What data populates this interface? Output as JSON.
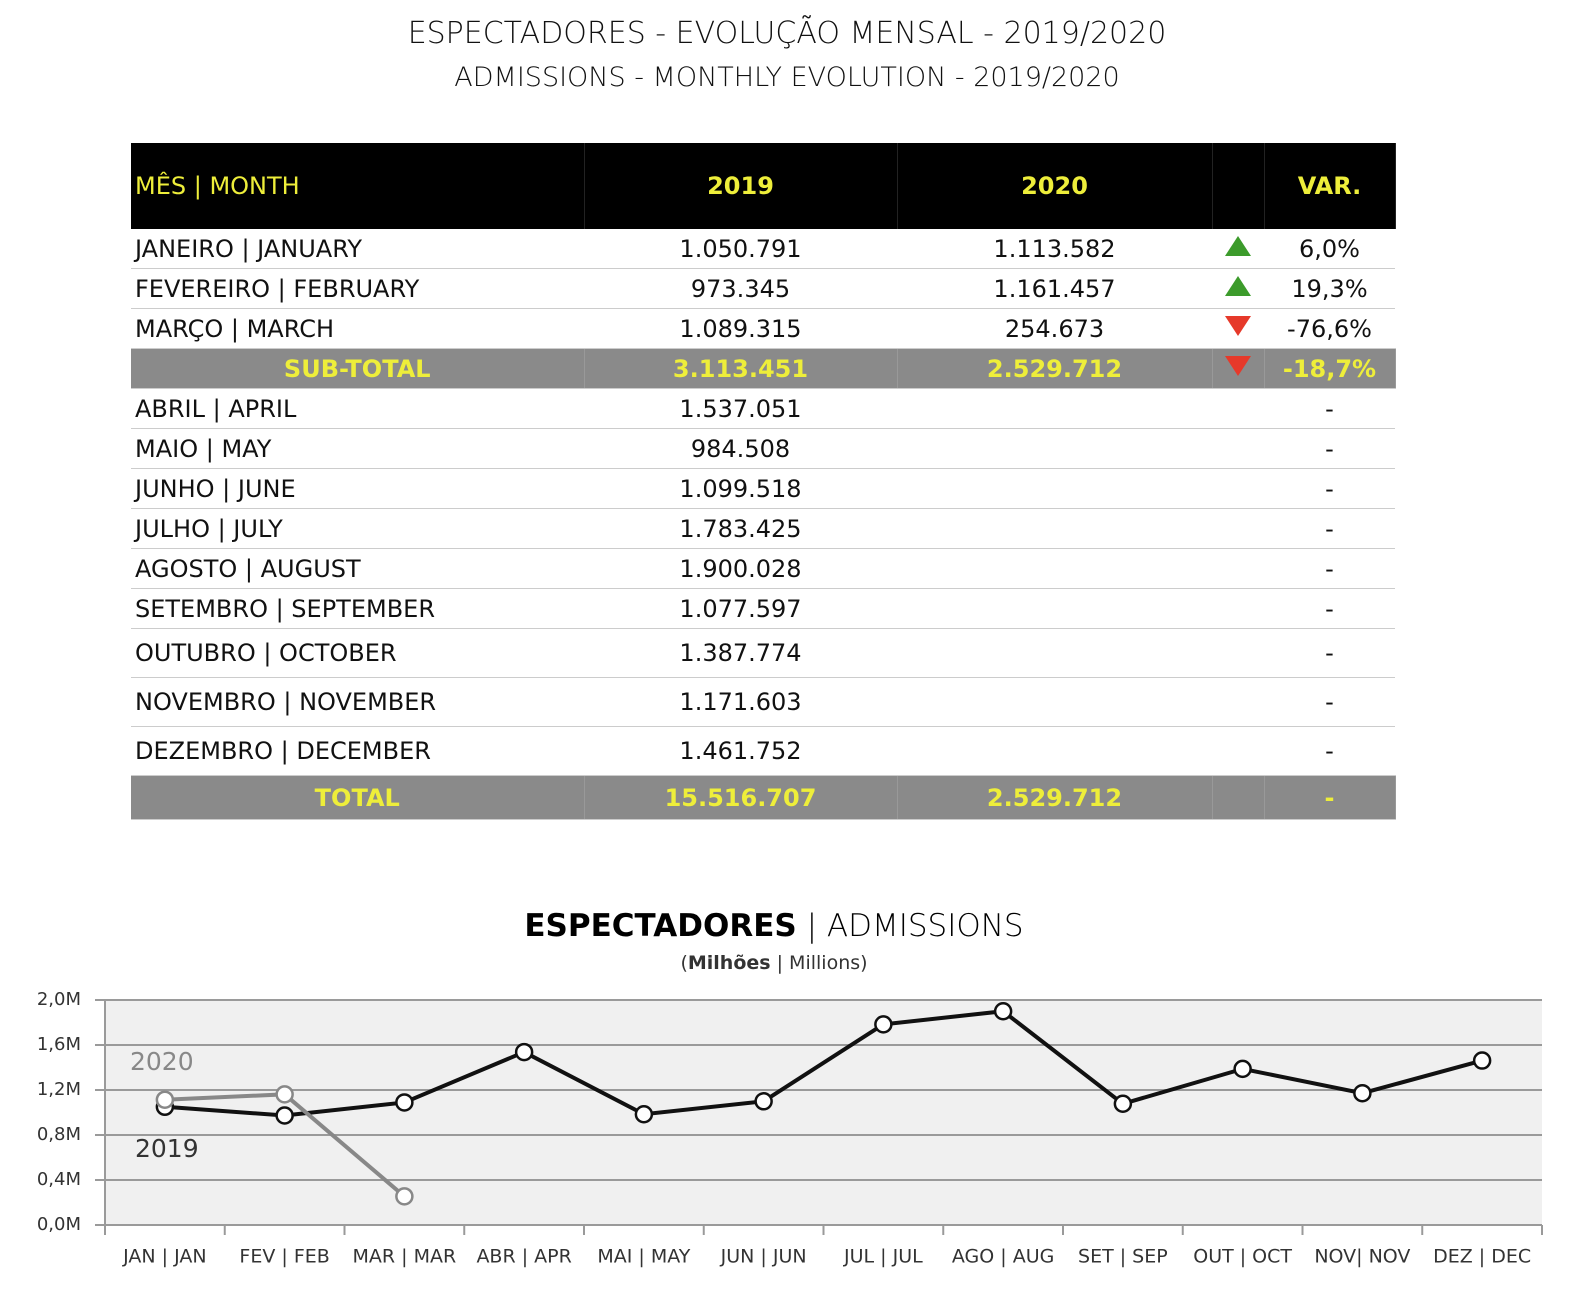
{
  "header": {
    "title": "ESPECTADORES - EVOLUÇÃO MENSAL - 2019/2020",
    "subtitle": "ADMISSIONS - MONTHLY EVOLUTION - 2019/2020"
  },
  "table": {
    "columns": [
      "MÊS | MONTH",
      "2019",
      "2020",
      "VAR."
    ],
    "arrow_colors": {
      "up": "#3c9b2b",
      "down": "#e6392a"
    },
    "rows": [
      {
        "cells": [
          "JANEIRO | JANUARY",
          "1.050.791",
          "1.113.582",
          "6,0%"
        ],
        "arrow": "up"
      },
      {
        "cells": [
          "FEVEREIRO | FEBRUARY",
          "973.345",
          "1.161.457",
          "19,3%"
        ],
        "arrow": "up"
      },
      {
        "cells": [
          "MARÇO | MARCH",
          "1.089.315",
          "254.673",
          "-76,6%"
        ],
        "arrow": "down"
      },
      {
        "cells": [
          "SUB-TOTAL",
          "3.113.451",
          "2.529.712",
          "-18,7%"
        ],
        "arrow": "down",
        "highlight": true
      },
      {
        "cells": [
          "ABRIL | APRIL",
          "1.537.051",
          null,
          "-"
        ]
      },
      {
        "cells": [
          "MAIO | MAY",
          "984.508",
          null,
          "-"
        ]
      },
      {
        "cells": [
          "JUNHO | JUNE",
          "1.099.518",
          null,
          "-"
        ]
      },
      {
        "cells": [
          "JULHO | JULY",
          "1.783.425",
          null,
          "-"
        ]
      },
      {
        "cells": [
          "AGOSTO | AUGUST",
          "1.900.028",
          null,
          "-"
        ]
      },
      {
        "cells": [
          "SETEMBRO | SEPTEMBER",
          "1.077.597",
          null,
          "-"
        ]
      },
      {
        "cells": [
          "OUTUBRO | OCTOBER",
          "1.387.774",
          null,
          "-"
        ]
      },
      {
        "cells": [
          "NOVEMBRO | NOVEMBER",
          "1.171.603",
          null,
          "-"
        ]
      },
      {
        "cells": [
          "DEZEMBRO | DECEMBER",
          "1.461.752",
          null,
          "-"
        ]
      },
      {
        "cells": [
          "TOTAL",
          "15.516.707",
          "2.529.712",
          "-"
        ],
        "highlight": true
      }
    ]
  },
  "chart_data": {
    "type": "line",
    "title": [
      "ESPECTADORES",
      " | ADMISSIONS"
    ],
    "subtitle": [
      "(",
      "Milhões",
      " | Millions)"
    ],
    "categories": [
      "JAN | JAN",
      "FEV | FEB",
      "MAR | MAR",
      "ABR | APR",
      "MAI | MAY",
      "JUN | JUN",
      "JUL | JUL",
      "AGO | AUG",
      "SET | SEP",
      "OUT | OCT",
      "NOV| NOV",
      "DEZ | DEC"
    ],
    "series": [
      {
        "name": "2019",
        "color": "#111111",
        "values": [
          1.050791,
          0.973345,
          1.089315,
          1.537051,
          0.984508,
          1.099518,
          1.783425,
          1.900028,
          1.077597,
          1.387774,
          1.171603,
          1.461752
        ]
      },
      {
        "name": "2020",
        "color": "#888888",
        "values": [
          1.113582,
          1.161457,
          0.254673,
          null,
          null,
          null,
          null,
          null,
          null,
          null,
          null,
          null
        ]
      }
    ],
    "ylim": [
      0,
      2
    ],
    "yticks": [
      {
        "value": 0,
        "label": "0,0M"
      },
      {
        "value": 0.4,
        "label": "0,4M"
      },
      {
        "value": 0.8,
        "label": "0,8M"
      },
      {
        "value": 1.2,
        "label": "1,2M"
      },
      {
        "value": 1.6,
        "label": "1,6M"
      },
      {
        "value": 2,
        "label": "2,0M"
      }
    ],
    "grid": true
  }
}
